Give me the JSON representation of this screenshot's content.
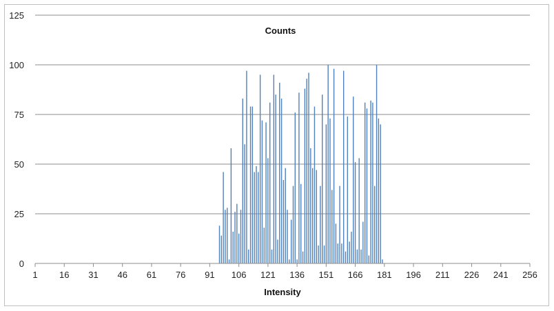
{
  "chart_data": {
    "type": "bar",
    "title": "Counts",
    "xlabel": "Intensity",
    "ylabel": "",
    "xlim": [
      1,
      256
    ],
    "ylim": [
      0,
      125
    ],
    "x_ticks": [
      1,
      16,
      31,
      46,
      61,
      76,
      91,
      106,
      121,
      136,
      151,
      166,
      181,
      196,
      211,
      226,
      241,
      256
    ],
    "y_ticks": [
      0,
      25,
      50,
      75,
      100,
      125
    ],
    "grid": "horizontal",
    "legend": "none",
    "bar_color": "#4f81bd",
    "x": [
      96,
      97,
      98,
      99,
      100,
      101,
      102,
      103,
      104,
      105,
      106,
      107,
      108,
      109,
      110,
      111,
      112,
      113,
      114,
      115,
      116,
      117,
      118,
      119,
      120,
      121,
      122,
      123,
      124,
      125,
      126,
      127,
      128,
      129,
      130,
      131,
      132,
      133,
      134,
      135,
      136,
      137,
      138,
      139,
      140,
      141,
      142,
      143,
      144,
      145,
      146,
      147,
      148,
      149,
      150,
      151,
      152,
      153,
      154,
      155,
      156,
      157,
      158,
      159,
      160,
      161,
      162,
      163,
      164,
      165,
      166,
      167,
      168,
      169,
      170,
      171,
      172,
      173,
      174,
      175,
      176,
      177,
      178,
      179,
      180
    ],
    "values": [
      19,
      14,
      46,
      27,
      28,
      2,
      58,
      16,
      26,
      30,
      15,
      27,
      83,
      60,
      97,
      7,
      79,
      79,
      46,
      49,
      46,
      95,
      72,
      18,
      71,
      53,
      81,
      7,
      95,
      85,
      12,
      91,
      83,
      42,
      48,
      27,
      2,
      22,
      39,
      76,
      2,
      86,
      40,
      6,
      88,
      93,
      96,
      58,
      48,
      79,
      47,
      9,
      39,
      85,
      9,
      70,
      100,
      73,
      37,
      98,
      20,
      10,
      39,
      10,
      97,
      6,
      74,
      11,
      16,
      84,
      51,
      7,
      53,
      7,
      21,
      81,
      78,
      4,
      82,
      81,
      39,
      100,
      73,
      70,
      2
    ]
  }
}
